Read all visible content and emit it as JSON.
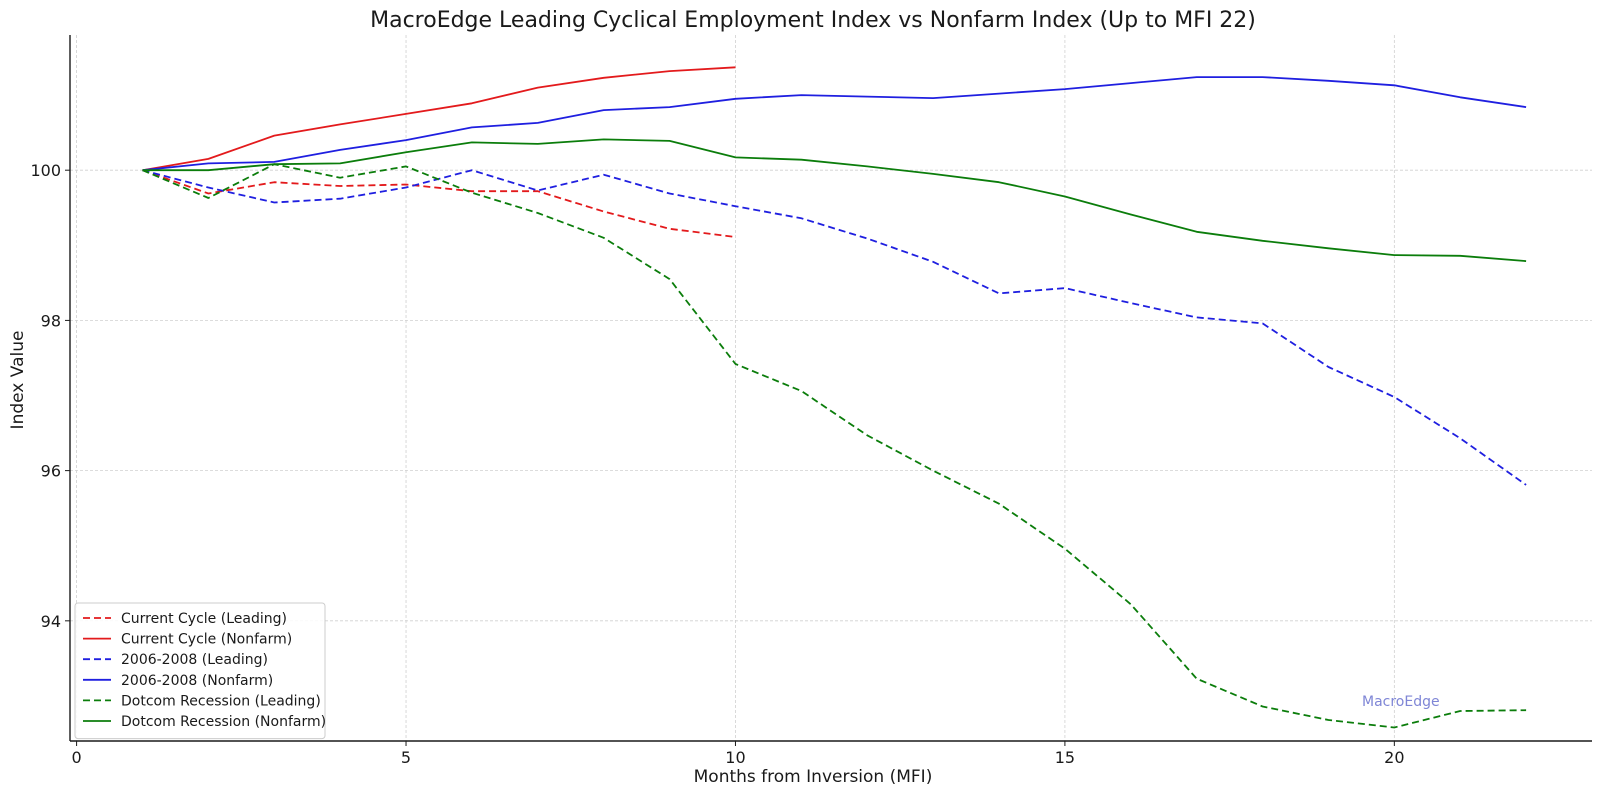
{
  "chart_data": {
    "type": "line",
    "title": "MacroEdge Leading Cyclical Employment Index vs Nonfarm Index (Up to MFI 22)",
    "xlabel": "Months from Inversion (MFI)",
    "ylabel": "Index Value",
    "xlim": [
      -0.1,
      23.0
    ],
    "ylim": [
      92.4,
      101.8
    ],
    "xticks": [
      0,
      5,
      10,
      15,
      20
    ],
    "yticks": [
      94,
      96,
      98,
      100
    ],
    "grid": true,
    "legend_position": "lower-left",
    "watermark": "MacroEdge",
    "series": [
      {
        "name": "Current Cycle (Leading)",
        "color": "#e31a1c",
        "style": "dashed",
        "x": [
          1,
          2,
          3,
          4,
          5,
          6,
          7,
          8,
          9,
          10
        ],
        "y": [
          100.0,
          99.69,
          99.84,
          99.79,
          99.81,
          99.72,
          99.72,
          99.45,
          99.22,
          99.11
        ]
      },
      {
        "name": "Current Cycle (Nonfarm)",
        "color": "#e31a1c",
        "style": "solid",
        "x": [
          1,
          2,
          3,
          4,
          5,
          6,
          7,
          8,
          9,
          10
        ],
        "y": [
          100.0,
          100.15,
          100.46,
          100.61,
          100.75,
          100.89,
          101.1,
          101.23,
          101.32,
          101.37
        ]
      },
      {
        "name": "2006-2008 (Leading)",
        "color": "#1f1fe0",
        "style": "dashed",
        "x": [
          1,
          2,
          3,
          4,
          5,
          6,
          7,
          8,
          9,
          10,
          11,
          12,
          13,
          14,
          15,
          16,
          17,
          18,
          19,
          20,
          21,
          22
        ],
        "y": [
          100.0,
          99.77,
          99.57,
          99.62,
          99.77,
          100.0,
          99.73,
          99.94,
          99.69,
          99.52,
          99.36,
          99.09,
          98.78,
          98.36,
          98.43,
          98.23,
          98.04,
          97.96,
          97.38,
          96.98,
          96.43,
          95.81
        ]
      },
      {
        "name": "2006-2008 (Nonfarm)",
        "color": "#1f1fe0",
        "style": "solid",
        "x": [
          1,
          2,
          3,
          4,
          5,
          6,
          7,
          8,
          9,
          10,
          11,
          12,
          13,
          14,
          15,
          16,
          17,
          18,
          19,
          20,
          21,
          22
        ],
        "y": [
          100.0,
          100.09,
          100.11,
          100.27,
          100.4,
          100.57,
          100.63,
          100.8,
          100.84,
          100.95,
          101.0,
          100.98,
          100.96,
          101.02,
          101.08,
          101.16,
          101.24,
          101.24,
          101.19,
          101.13,
          100.97,
          100.84
        ]
      },
      {
        "name": "Dotcom Recession (Leading)",
        "color": "#0b7d0b",
        "style": "dashed",
        "x": [
          1,
          2,
          3,
          4,
          5,
          6,
          7,
          8,
          9,
          10,
          11,
          12,
          13,
          14,
          15,
          16,
          17,
          18,
          19,
          20,
          21,
          22
        ],
        "y": [
          100.0,
          99.63,
          100.08,
          99.9,
          100.05,
          99.7,
          99.43,
          99.1,
          98.55,
          97.42,
          97.06,
          96.47,
          96.0,
          95.56,
          94.96,
          94.22,
          93.23,
          92.86,
          92.68,
          92.58,
          92.8,
          92.81
        ]
      },
      {
        "name": "Dotcom Recession (Nonfarm)",
        "color": "#0b7d0b",
        "style": "solid",
        "x": [
          1,
          2,
          3,
          4,
          5,
          6,
          7,
          8,
          9,
          10,
          11,
          12,
          13,
          14,
          15,
          16,
          17,
          18,
          19,
          20,
          21,
          22
        ],
        "y": [
          100.0,
          100.0,
          100.08,
          100.09,
          100.24,
          100.37,
          100.35,
          100.41,
          100.39,
          100.17,
          100.14,
          100.05,
          99.95,
          99.84,
          99.65,
          99.41,
          99.18,
          99.06,
          98.96,
          98.87,
          98.86,
          98.79
        ]
      }
    ]
  }
}
